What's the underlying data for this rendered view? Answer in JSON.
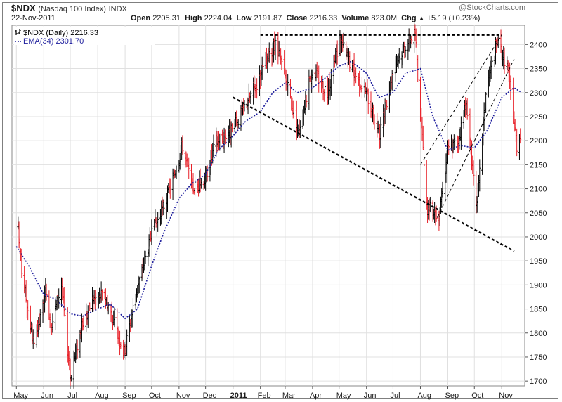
{
  "header": {
    "symbol": "$NDX",
    "index_name": "(Nasdaq 100 Index)",
    "exchange": "INDX",
    "date": "22-Nov-2011",
    "watermark": "@StockCharts.com",
    "open_label": "Open",
    "open_value": "2205.31",
    "high_label": "High",
    "high_value": "2224.04",
    "low_label": "Low",
    "low_value": "2191.87",
    "close_label": "Close",
    "close_value": "2216.33",
    "volume_label": "Volume",
    "volume_value": "823.0M",
    "chg_label": "Chg",
    "chg_value": "+5.19 (+0.23%)",
    "chg_arrow_icon": "up-triangle-icon"
  },
  "legend": {
    "price_series": "$NDX (Daily) 2216.33",
    "ema_series": "EMA(34) 2301.70",
    "bar_icon": "ohlc-bars-icon"
  },
  "colors": {
    "up_bar": "#000000",
    "down_bar": "#e8222a",
    "ema": "#1c1c9c",
    "grid": "#e0e0e0",
    "trendline": "#000000"
  },
  "chart_data": {
    "type": "ohlc",
    "title": "$NDX (Nasdaq 100 Index) INDX",
    "period": "Daily",
    "ylim": [
      1690,
      2440
    ],
    "y_ticks": [
      1700,
      1750,
      1800,
      1850,
      1900,
      1950,
      2000,
      2050,
      2100,
      2150,
      2200,
      2250,
      2300,
      2350,
      2400
    ],
    "x_ticks": [
      "May",
      "Jun",
      "Jul",
      "Aug",
      "Sep",
      "Oct",
      "Nov",
      "Dec",
      "2011",
      "Feb",
      "Mar",
      "Apr",
      "May",
      "Jun",
      "Jul",
      "Aug",
      "Sep",
      "Oct",
      "Nov"
    ],
    "x_tick_bold": "2011",
    "grid": true,
    "legend_position": "top-left",
    "close_path": [
      [
        "2010-05-01",
        2050
      ],
      [
        "2010-05-07",
        1930
      ],
      [
        "2010-05-21",
        1770
      ],
      [
        "2010-06-03",
        1880
      ],
      [
        "2010-06-10",
        1820
      ],
      [
        "2010-06-21",
        1900
      ],
      [
        "2010-07-01",
        1710
      ],
      [
        "2010-07-12",
        1800
      ],
      [
        "2010-07-26",
        1870
      ],
      [
        "2010-08-09",
        1880
      ],
      [
        "2010-08-18",
        1830
      ],
      [
        "2010-08-31",
        1760
      ],
      [
        "2010-09-13",
        1880
      ],
      [
        "2010-09-30",
        2000
      ],
      [
        "2010-10-18",
        2080
      ],
      [
        "2010-11-05",
        2190
      ],
      [
        "2010-11-16",
        2100
      ],
      [
        "2010-11-30",
        2120
      ],
      [
        "2010-12-13",
        2200
      ],
      [
        "2010-12-31",
        2220
      ],
      [
        "2011-01-14",
        2270
      ],
      [
        "2011-01-28",
        2320
      ],
      [
        "2011-02-18",
        2400
      ],
      [
        "2011-03-01",
        2330
      ],
      [
        "2011-03-16",
        2220
      ],
      [
        "2011-04-01",
        2350
      ],
      [
        "2011-04-18",
        2300
      ],
      [
        "2011-05-02",
        2410
      ],
      [
        "2011-05-16",
        2350
      ],
      [
        "2011-06-01",
        2300
      ],
      [
        "2011-06-16",
        2210
      ],
      [
        "2011-07-01",
        2350
      ],
      [
        "2011-07-15",
        2400
      ],
      [
        "2011-07-26",
        2425
      ],
      [
        "2011-08-08",
        2060
      ],
      [
        "2011-08-22",
        2050
      ],
      [
        "2011-09-01",
        2180
      ],
      [
        "2011-09-13",
        2200
      ],
      [
        "2011-09-21",
        2280
      ],
      [
        "2011-10-04",
        2060
      ],
      [
        "2011-10-14",
        2300
      ],
      [
        "2011-10-27",
        2410
      ],
      [
        "2011-11-08",
        2350
      ],
      [
        "2011-11-18",
        2190
      ],
      [
        "2011-11-22",
        2216
      ]
    ],
    "ema_path": [
      [
        "2010-05-01",
        1980
      ],
      [
        "2010-05-15",
        1940
      ],
      [
        "2010-06-01",
        1880
      ],
      [
        "2010-06-15",
        1870
      ],
      [
        "2010-07-01",
        1840
      ],
      [
        "2010-07-15",
        1835
      ],
      [
        "2010-08-01",
        1850
      ],
      [
        "2010-08-15",
        1860
      ],
      [
        "2010-09-01",
        1830
      ],
      [
        "2010-09-15",
        1850
      ],
      [
        "2010-10-01",
        1940
      ],
      [
        "2010-10-15",
        2010
      ],
      [
        "2010-11-01",
        2080
      ],
      [
        "2010-11-15",
        2110
      ],
      [
        "2010-12-01",
        2130
      ],
      [
        "2010-12-15",
        2180
      ],
      [
        "2011-01-01",
        2210
      ],
      [
        "2011-01-15",
        2240
      ],
      [
        "2011-02-01",
        2260
      ],
      [
        "2011-02-15",
        2300
      ],
      [
        "2011-03-01",
        2320
      ],
      [
        "2011-03-15",
        2300
      ],
      [
        "2011-04-01",
        2310
      ],
      [
        "2011-04-15",
        2330
      ],
      [
        "2011-05-01",
        2355
      ],
      [
        "2011-05-15",
        2365
      ],
      [
        "2011-06-01",
        2340
      ],
      [
        "2011-06-15",
        2290
      ],
      [
        "2011-07-01",
        2300
      ],
      [
        "2011-07-15",
        2340
      ],
      [
        "2011-08-01",
        2350
      ],
      [
        "2011-08-15",
        2250
      ],
      [
        "2011-09-01",
        2180
      ],
      [
        "2011-09-15",
        2190
      ],
      [
        "2011-10-01",
        2185
      ],
      [
        "2011-10-15",
        2220
      ],
      [
        "2011-11-01",
        2290
      ],
      [
        "2011-11-15",
        2310
      ],
      [
        "2011-11-22",
        2301.7
      ]
    ],
    "annotations": [
      {
        "type": "dashed-line",
        "from": [
          "2011-02-01",
          2420
        ],
        "to": [
          "2011-11-01",
          2420
        ]
      },
      {
        "type": "dashed-line",
        "from": [
          "2011-01-01",
          2290
        ],
        "to": [
          "2011-11-15",
          1970
        ]
      },
      {
        "type": "dashed-line",
        "from": [
          "2011-08-01",
          2150
        ],
        "to": [
          "2011-11-01",
          2420
        ]
      },
      {
        "type": "dashed-line",
        "from": [
          "2011-08-20",
          2040
        ],
        "to": [
          "2011-11-15",
          2370
        ]
      }
    ]
  }
}
